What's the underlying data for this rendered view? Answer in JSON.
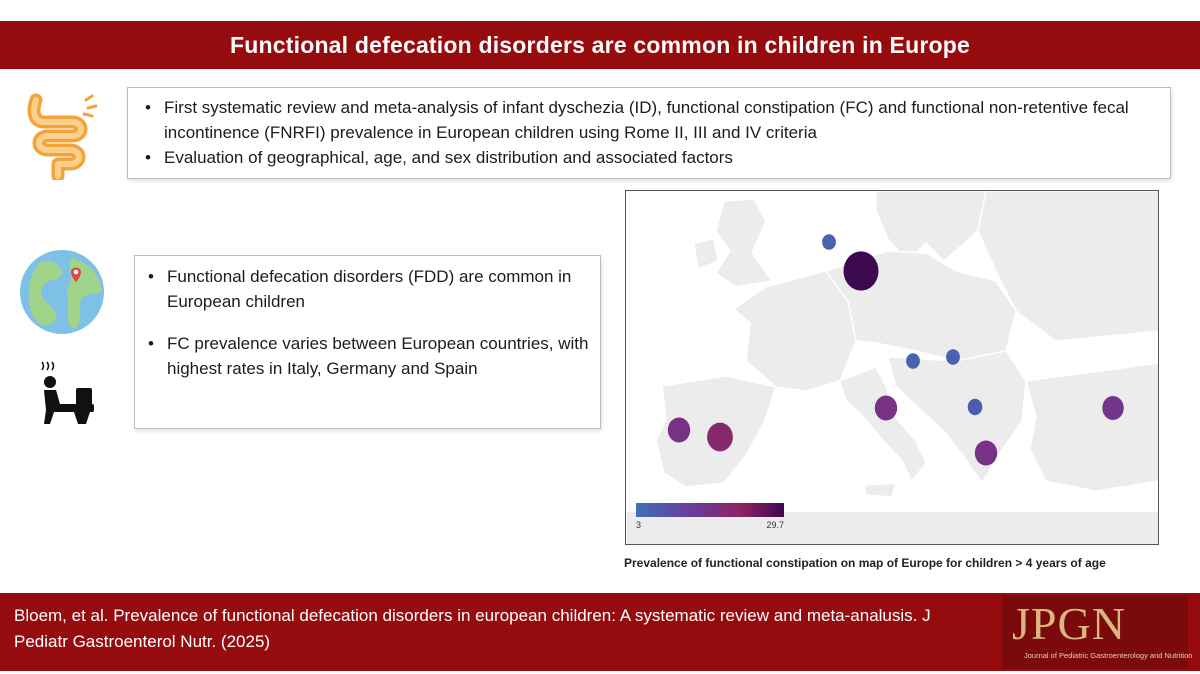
{
  "header": {
    "title": "Functional defecation disorders are common in children in Europe"
  },
  "top_box": {
    "bullets": [
      "First systematic review and meta-analysis of infant dyschezia (ID), functional constipation (FC) and functional non-retentive fecal incontinence (FNRFI) prevalence in European children using Rome II, III and IV criteria",
      "Evaluation of geographical, age, and sex distribution and associated factors"
    ]
  },
  "mid_box": {
    "bullets": [
      "Functional defecation disorders (FDD) are common in European children",
      "FC prevalence varies between European countries, with highest rates in Italy, Germany and Spain"
    ]
  },
  "map": {
    "caption": "Prevalence of functional constipation on map of Europe for children > 4 years of age",
    "legend": {
      "min_label": "3",
      "max_label": "29.7",
      "min": 3,
      "max": 29.7,
      "colors": [
        "#3f6fb8",
        "#6a3a98",
        "#8e2462",
        "#3d0a4f"
      ]
    },
    "bubbles": [
      {
        "value": 5
      },
      {
        "value": 29.7
      },
      {
        "value": 5
      },
      {
        "value": 5
      },
      {
        "value": 15
      },
      {
        "value": 14
      },
      {
        "value": 6
      },
      {
        "value": 15
      },
      {
        "value": 19
      },
      {
        "value": 15
      }
    ]
  },
  "footer": {
    "citation": "Bloem, et al. Prevalence of functional defecation disorders in european children: A systematic review and meta-analusis. J Pediatr Gastroenterol Nutr. (2025)",
    "logo_text": "JPGN",
    "logo_subtitle": "Journal of Pediatric Gastroenterology and Nutrition"
  },
  "icons": [
    "intestine-icon",
    "globe-location-icon",
    "person-on-toilet-icon"
  ]
}
